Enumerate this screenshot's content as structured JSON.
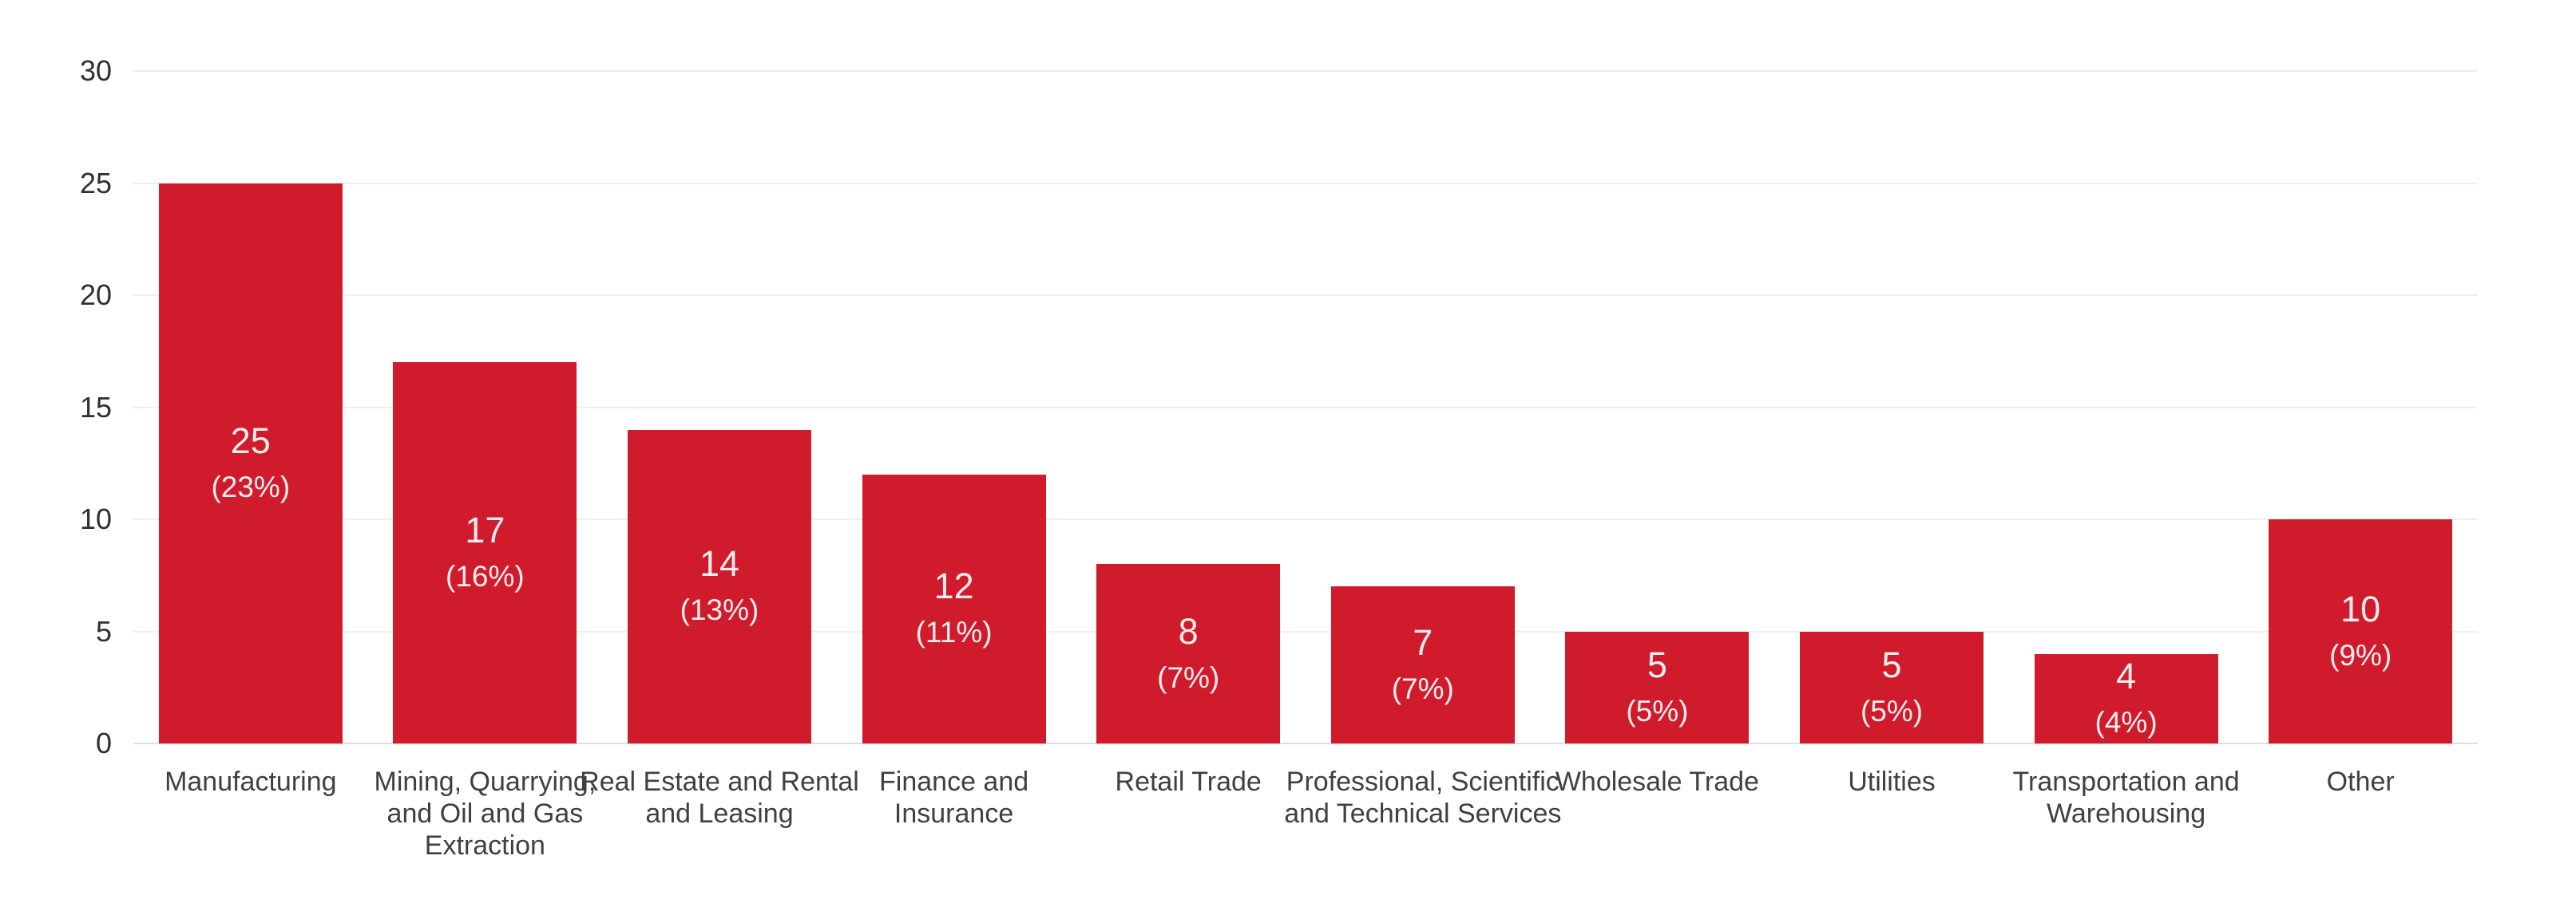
{
  "chart_data": {
    "type": "bar",
    "title": "",
    "xlabel": "",
    "ylabel": "",
    "ylim": [
      0,
      30
    ],
    "yticks": [
      0,
      5,
      10,
      15,
      20,
      25,
      30
    ],
    "grid": "horizontal-light-gray",
    "legend": "none",
    "categories": [
      "Manufacturing",
      "Mining, Quarrying, and Oil and Gas Extraction",
      "Real Estate and Rental and Leasing",
      "Finance and Insurance",
      "Retail Trade",
      "Professional, Scientific and Technical Services",
      "Wholesale Trade",
      "Utilities",
      "Transportation and Warehousing",
      "Other"
    ],
    "category_lines": [
      [
        "Manufacturing"
      ],
      [
        "Mining, Quarrying,",
        "and Oil and Gas",
        "Extraction"
      ],
      [
        "Real Estate and Rental",
        "and Leasing"
      ],
      [
        "Finance and",
        "Insurance"
      ],
      [
        "Retail Trade"
      ],
      [
        "Professional, Scientific",
        "and Technical Services"
      ],
      [
        "Wholesale Trade"
      ],
      [
        "Utilities"
      ],
      [
        "Transportation and",
        "Warehousing"
      ],
      [
        "Other"
      ]
    ],
    "values": [
      25,
      17,
      14,
      12,
      8,
      7,
      5,
      5,
      4,
      10
    ],
    "value_labels": [
      "25",
      "17",
      "14",
      "12",
      "8",
      "7",
      "5",
      "5",
      "4",
      "10"
    ],
    "percent_labels": [
      "(23%)",
      "(16%)",
      "(13%)",
      "(11%)",
      "(7%)",
      "(7%)",
      "(5%)",
      "(5%)",
      "(4%)",
      "(9%)"
    ],
    "colors": {
      "bar": "#d01b2d",
      "bar_label": "rgba(255,255,255,0.92)",
      "tick_label": "#303030",
      "category_label": "#404040",
      "gridline": "#eeeeee",
      "zero_line": "#dedede"
    }
  }
}
